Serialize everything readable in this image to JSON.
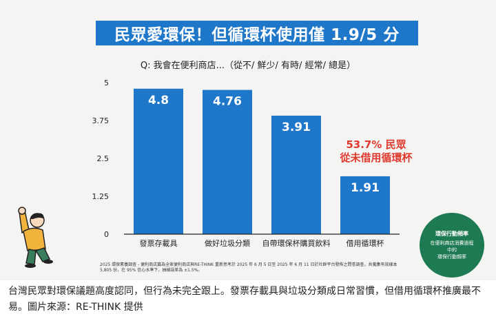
{
  "title": "民眾愛環保！但循環杯使用僅 1.9/5 分",
  "question": "Q: 我會在便利商店...（從不/ 鮮少/ 有時/ 經常/ 總是）",
  "annotation": {
    "line1": "53.7% 民眾",
    "line2": "從未借用循環杯"
  },
  "footnote": "2025 環保素養調查 - 便利商店篇為全家便利商店與RE-THINK 重新思考於 2025 年 6 月 5 日至 2025 年 6 月 11 日於社群平台發佈之問卷調查，共蒐集有效樣本 5,805 份，在 95% 信心水準下，抽樣誤差為 ±1.5%。",
  "badge": {
    "title": "環保行動頻率",
    "lines": [
      "在便利商店消費過程",
      "中的",
      "環保行動頻率"
    ]
  },
  "caption": "台灣民眾對環保議題高度認同，但行為未完全跟上。發票存載具與垃圾分類成日常習慣，但借用循環杯推廣最不易。圖片來源：RE-THINK 提供",
  "colors": {
    "bar": "#1f77c9",
    "title_bg": "#1f77c9",
    "annotation": "#e03a2f",
    "badge": "#1e7a52",
    "axis": "#222222"
  },
  "icons": {
    "person": "person-raising-hand-icon"
  },
  "chart_data": {
    "type": "bar",
    "categories": [
      "發票存載具",
      "做好垃圾分類",
      "自帶環保杯購買飲料",
      "借用循環杯"
    ],
    "values": [
      4.8,
      4.76,
      3.91,
      1.91
    ],
    "value_labels": [
      "4.8",
      "4.76",
      "3.91",
      "1.91"
    ],
    "yticks": [
      "5",
      "3.75",
      "2.5",
      "1.25",
      "0"
    ],
    "ylim": [
      0,
      5
    ],
    "grid": false,
    "title": "民眾愛環保！但循環杯使用僅 1.9/5 分",
    "xlabel": "",
    "ylabel": ""
  }
}
